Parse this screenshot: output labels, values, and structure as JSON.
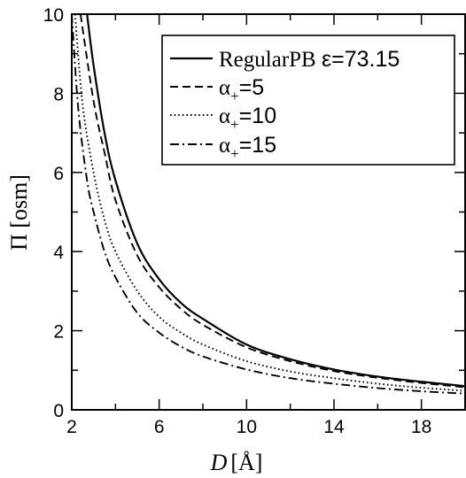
{
  "chart_data": {
    "type": "line",
    "xlabel": "D [Å]",
    "xlabel_var": "D",
    "xlabel_unit": "[Å]",
    "ylabel": "Π [osm]",
    "xlim": [
      2,
      20
    ],
    "ylim": [
      0,
      10
    ],
    "x_ticks": [
      2,
      6,
      10,
      14,
      18
    ],
    "y_ticks": [
      0,
      2,
      4,
      6,
      8,
      10
    ],
    "grid": false,
    "legend_position": "top-right",
    "series": [
      {
        "name": "RegularPB ε=73.15",
        "style": "solid",
        "x": [
          2.7,
          3,
          3.5,
          4,
          5,
          6,
          7,
          8,
          10,
          12,
          14,
          16,
          18,
          20
        ],
        "y": [
          10.0,
          8.7,
          7.0,
          5.8,
          4.2,
          3.3,
          2.7,
          2.3,
          1.65,
          1.28,
          1.02,
          0.84,
          0.71,
          0.6
        ]
      },
      {
        "name": "α+=5",
        "style": "dashed",
        "x": [
          2.4,
          3,
          3.5,
          4,
          5,
          6,
          7,
          8,
          10,
          12,
          14,
          16,
          18,
          20
        ],
        "y": [
          10.0,
          7.8,
          6.5,
          5.3,
          3.9,
          3.1,
          2.55,
          2.15,
          1.58,
          1.23,
          0.98,
          0.81,
          0.68,
          0.57
        ]
      },
      {
        "name": "α+=10",
        "style": "dotted",
        "x": [
          2.15,
          2.5,
          3,
          3.5,
          4,
          5,
          6,
          7,
          8,
          10,
          12,
          14,
          16,
          18,
          20
        ],
        "y": [
          10.0,
          7.7,
          6.0,
          4.8,
          4.0,
          3.0,
          2.35,
          1.95,
          1.65,
          1.23,
          0.97,
          0.8,
          0.66,
          0.56,
          0.48
        ]
      },
      {
        "name": "α+=15",
        "style": "dashdot",
        "x": [
          2.0,
          2.3,
          2.7,
          3,
          3.5,
          4,
          5,
          6,
          7,
          8,
          10,
          12,
          14,
          16,
          18,
          20
        ],
        "y": [
          10.0,
          7.6,
          5.8,
          5.0,
          4.0,
          3.35,
          2.45,
          1.95,
          1.6,
          1.35,
          1.02,
          0.8,
          0.66,
          0.55,
          0.47,
          0.41
        ]
      }
    ],
    "legend": {
      "entries": [
        {
          "prefix": "RegularPB",
          "suffix": "ε=73.15"
        },
        {
          "prefix": "α",
          "sub": "+",
          "suffix": "=5"
        },
        {
          "prefix": "α",
          "sub": "+",
          "suffix": "=10"
        },
        {
          "prefix": "α",
          "sub": "+",
          "suffix": "=15"
        }
      ]
    }
  }
}
